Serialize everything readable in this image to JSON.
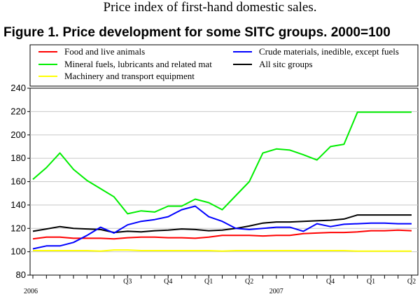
{
  "header": {
    "subtitle": "Price index of first-hand domestic sales.",
    "figure_title": "Figure 1. Price development for some SITC groups. 2000=100"
  },
  "chart_data": {
    "type": "line",
    "title": "Figure 1. Price development for some SITC groups. 2000=100",
    "xlabel": "",
    "ylabel": "",
    "ylim": [
      80,
      240
    ],
    "yticks": [
      80,
      100,
      120,
      140,
      160,
      180,
      200,
      220,
      240
    ],
    "grid": true,
    "legend_position": "top",
    "x": [
      "2006M01",
      "2006M02",
      "2006M03",
      "2006M04",
      "2006M05",
      "2006M06",
      "2006M07",
      "2006M08",
      "2006M09",
      "2006M10",
      "2006M11",
      "2006M12",
      "2007M01",
      "2007M02",
      "2007M03",
      "2007M04",
      "2007M05",
      "2007M06",
      "2007M07",
      "2007M08",
      "2007M09",
      "2007M10",
      "2007M11",
      "2007M12",
      "2008M01",
      "2008M02",
      "2008M03",
      "2008M04",
      "2008M05"
    ],
    "quarter_labels": [
      {
        "label": "Q3",
        "month_index": 7
      },
      {
        "label": "Q4",
        "month_index": 10
      },
      {
        "label": "Q1",
        "month_index": 13
      },
      {
        "label": "Q2",
        "month_index": 16
      },
      {
        "label": "Q4",
        "month_index": 22
      },
      {
        "label": "Q1",
        "month_index": 25
      },
      {
        "label": "Q2",
        "month_index": 28
      }
    ],
    "year_labels": [
      {
        "label": "2006",
        "month_index": 0
      },
      {
        "label": "2007",
        "month_index": 18
      }
    ],
    "series": [
      {
        "name": "Food and live animals",
        "color": "#ff0000",
        "values": [
          111,
          112.5,
          112.5,
          111.5,
          111.5,
          111.5,
          111,
          112,
          112.5,
          112.5,
          112,
          112,
          111.5,
          112.5,
          114,
          114,
          114,
          113.5,
          114,
          114,
          115.5,
          116,
          116.5,
          116.5,
          117,
          118,
          118,
          118.5,
          118
        ]
      },
      {
        "name": "Crude materials, inedible, except fuels",
        "color": "#0000ff",
        "values": [
          102.5,
          105,
          105,
          108,
          114,
          121,
          116,
          123,
          126,
          127.5,
          130,
          136,
          139,
          130,
          126,
          120,
          119,
          120,
          121,
          121,
          117.5,
          124,
          121.5,
          123.5,
          124,
          124.5,
          124.5,
          124,
          124
        ]
      },
      {
        "name": "Mineral fuels, lubricants and related mat",
        "color": "#00ee00",
        "values": [
          162,
          172,
          184.5,
          170.5,
          161,
          154,
          147,
          132.5,
          135,
          134,
          139,
          139,
          145,
          142,
          136,
          148,
          160,
          184.5,
          188,
          187,
          183,
          178.5,
          190,
          192,
          219.5,
          219.5,
          219.5,
          219.5,
          219.5
        ]
      },
      {
        "name": "All sitc groups",
        "color": "#000000",
        "values": [
          117.5,
          119.5,
          121.5,
          120,
          119.5,
          119,
          116.5,
          117.5,
          117,
          118,
          118.5,
          119.5,
          119,
          118,
          118.5,
          120,
          122,
          124.5,
          125.5,
          125.5,
          126,
          126.5,
          127,
          128,
          131.5,
          131.5,
          131.5,
          131.5,
          131.5
        ]
      },
      {
        "name": "Machinery and transport equipment",
        "color": "#ffff00",
        "values": [
          101,
          101,
          101,
          101,
          101,
          100.5,
          101.5,
          101.5,
          101,
          101,
          101,
          101,
          101,
          101,
          100.5,
          101,
          101,
          101,
          101,
          101,
          101,
          101,
          101,
          101,
          100.5,
          100.5,
          100.5,
          100.5,
          100.5
        ]
      }
    ]
  }
}
